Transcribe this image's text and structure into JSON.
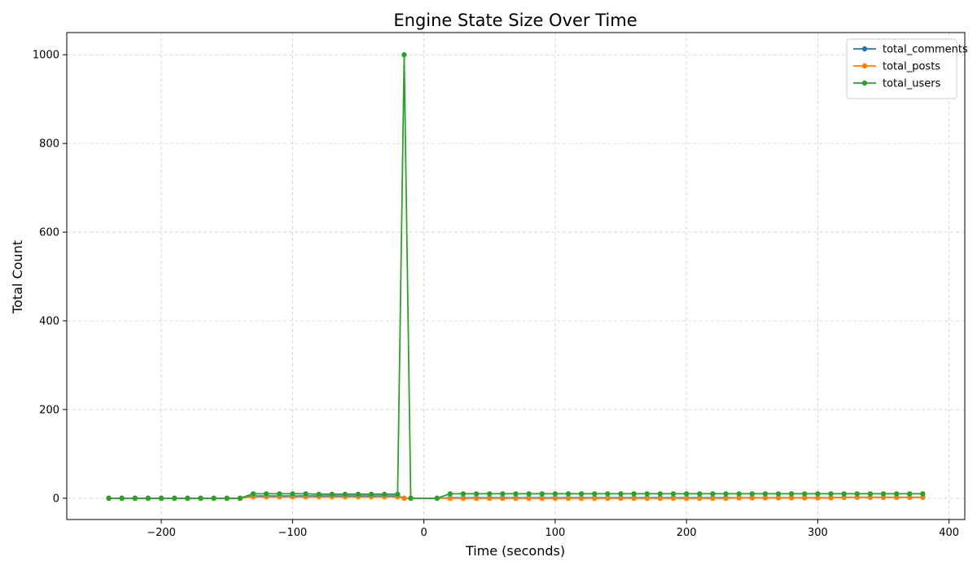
{
  "chart_data": {
    "type": "line",
    "title": "Engine State Size Over Time",
    "xlabel": "Time (seconds)",
    "ylabel": "Total Count",
    "xlim": [
      -272,
      412
    ],
    "ylim": [
      -48,
      1050
    ],
    "xticks": [
      -200,
      -100,
      0,
      100,
      200,
      300,
      400
    ],
    "yticks": [
      0,
      200,
      400,
      600,
      800,
      1000
    ],
    "grid": true,
    "legend_position": "top-right",
    "series": [
      {
        "name": "total_comments",
        "color": "#1f77b4",
        "points": [
          [
            -240,
            0
          ],
          [
            -230,
            0
          ],
          [
            -220,
            0
          ],
          [
            -210,
            0
          ],
          [
            -200,
            0
          ],
          [
            -190,
            0
          ],
          [
            -180,
            0
          ],
          [
            -170,
            0
          ],
          [
            -160,
            0
          ],
          [
            -150,
            0
          ],
          [
            -140,
            0
          ],
          [
            -130,
            5
          ],
          [
            -120,
            5
          ],
          [
            -110,
            5
          ],
          [
            -100,
            5
          ],
          [
            -90,
            5
          ],
          [
            -80,
            5
          ],
          [
            -70,
            5
          ],
          [
            -60,
            5
          ],
          [
            -50,
            5
          ],
          [
            -40,
            5
          ],
          [
            -30,
            5
          ],
          [
            -20,
            5
          ],
          [
            -15,
            0
          ],
          [
            -10,
            0
          ],
          [
            10,
            0
          ],
          [
            20,
            1
          ],
          [
            30,
            1
          ],
          [
            40,
            1
          ],
          [
            50,
            1
          ],
          [
            60,
            1
          ],
          [
            70,
            1
          ],
          [
            80,
            1
          ],
          [
            90,
            1
          ],
          [
            100,
            1
          ],
          [
            110,
            1
          ],
          [
            120,
            1
          ],
          [
            130,
            1
          ],
          [
            140,
            1
          ],
          [
            150,
            1
          ],
          [
            160,
            1
          ],
          [
            170,
            1
          ],
          [
            180,
            1
          ],
          [
            190,
            1
          ],
          [
            200,
            1
          ],
          [
            210,
            1
          ],
          [
            220,
            1
          ],
          [
            230,
            1
          ],
          [
            240,
            1
          ],
          [
            250,
            1
          ],
          [
            260,
            1
          ],
          [
            270,
            1
          ],
          [
            280,
            1
          ],
          [
            290,
            1
          ],
          [
            300,
            1
          ],
          [
            310,
            1
          ],
          [
            320,
            2
          ],
          [
            330,
            2
          ],
          [
            340,
            2
          ],
          [
            350,
            2
          ],
          [
            360,
            2
          ],
          [
            370,
            2
          ],
          [
            380,
            2
          ]
        ]
      },
      {
        "name": "total_posts",
        "color": "#ff7f0e",
        "points": [
          [
            -240,
            0
          ],
          [
            -230,
            0
          ],
          [
            -220,
            0
          ],
          [
            -210,
            0
          ],
          [
            -200,
            0
          ],
          [
            -190,
            0
          ],
          [
            -180,
            0
          ],
          [
            -170,
            0
          ],
          [
            -160,
            0
          ],
          [
            -150,
            0
          ],
          [
            -140,
            0
          ],
          [
            -130,
            3
          ],
          [
            -120,
            3
          ],
          [
            -110,
            3
          ],
          [
            -100,
            3
          ],
          [
            -90,
            3
          ],
          [
            -80,
            3
          ],
          [
            -70,
            3
          ],
          [
            -60,
            3
          ],
          [
            -50,
            3
          ],
          [
            -40,
            3
          ],
          [
            -30,
            3
          ],
          [
            -20,
            3
          ],
          [
            -15,
            0
          ],
          [
            -10,
            0
          ],
          [
            10,
            0
          ],
          [
            20,
            0
          ],
          [
            30,
            0
          ],
          [
            40,
            0
          ],
          [
            50,
            0
          ],
          [
            60,
            0
          ],
          [
            70,
            0
          ],
          [
            80,
            0
          ],
          [
            90,
            0
          ],
          [
            100,
            0
          ],
          [
            110,
            0
          ],
          [
            120,
            0
          ],
          [
            130,
            0
          ],
          [
            140,
            0
          ],
          [
            150,
            0
          ],
          [
            160,
            0
          ],
          [
            170,
            0
          ],
          [
            180,
            0
          ],
          [
            190,
            0
          ],
          [
            200,
            0
          ],
          [
            210,
            0
          ],
          [
            220,
            0
          ],
          [
            230,
            0
          ],
          [
            240,
            1
          ],
          [
            250,
            1
          ],
          [
            260,
            1
          ],
          [
            270,
            1
          ],
          [
            280,
            1
          ],
          [
            290,
            1
          ],
          [
            300,
            1
          ],
          [
            310,
            1
          ],
          [
            320,
            2
          ],
          [
            330,
            2
          ],
          [
            340,
            2
          ],
          [
            350,
            2
          ],
          [
            360,
            2
          ],
          [
            370,
            2
          ],
          [
            380,
            2
          ]
        ]
      },
      {
        "name": "total_users",
        "color": "#2ca02c",
        "points": [
          [
            -240,
            0
          ],
          [
            -230,
            0
          ],
          [
            -220,
            0
          ],
          [
            -210,
            0
          ],
          [
            -200,
            0
          ],
          [
            -190,
            0
          ],
          [
            -180,
            0
          ],
          [
            -170,
            0
          ],
          [
            -160,
            0
          ],
          [
            -150,
            0
          ],
          [
            -140,
            0
          ],
          [
            -130,
            10
          ],
          [
            -120,
            10
          ],
          [
            -110,
            10
          ],
          [
            -100,
            10
          ],
          [
            -90,
            10
          ],
          [
            -80,
            9
          ],
          [
            -70,
            9
          ],
          [
            -60,
            9
          ],
          [
            -50,
            9
          ],
          [
            -40,
            9
          ],
          [
            -30,
            9
          ],
          [
            -20,
            9
          ],
          [
            -15,
            1000
          ],
          [
            -10,
            0
          ],
          [
            10,
            0
          ],
          [
            20,
            10
          ],
          [
            30,
            10
          ],
          [
            40,
            10
          ],
          [
            50,
            10
          ],
          [
            60,
            10
          ],
          [
            70,
            10
          ],
          [
            80,
            10
          ],
          [
            90,
            10
          ],
          [
            100,
            10
          ],
          [
            110,
            10
          ],
          [
            120,
            10
          ],
          [
            130,
            10
          ],
          [
            140,
            10
          ],
          [
            150,
            10
          ],
          [
            160,
            10
          ],
          [
            170,
            10
          ],
          [
            180,
            10
          ],
          [
            190,
            10
          ],
          [
            200,
            10
          ],
          [
            210,
            10
          ],
          [
            220,
            10
          ],
          [
            230,
            10
          ],
          [
            240,
            10
          ],
          [
            250,
            10
          ],
          [
            260,
            10
          ],
          [
            270,
            10
          ],
          [
            280,
            10
          ],
          [
            290,
            10
          ],
          [
            300,
            10
          ],
          [
            310,
            10
          ],
          [
            320,
            10
          ],
          [
            330,
            10
          ],
          [
            340,
            10
          ],
          [
            350,
            10
          ],
          [
            360,
            10
          ],
          [
            370,
            10
          ],
          [
            380,
            10
          ]
        ]
      }
    ]
  }
}
